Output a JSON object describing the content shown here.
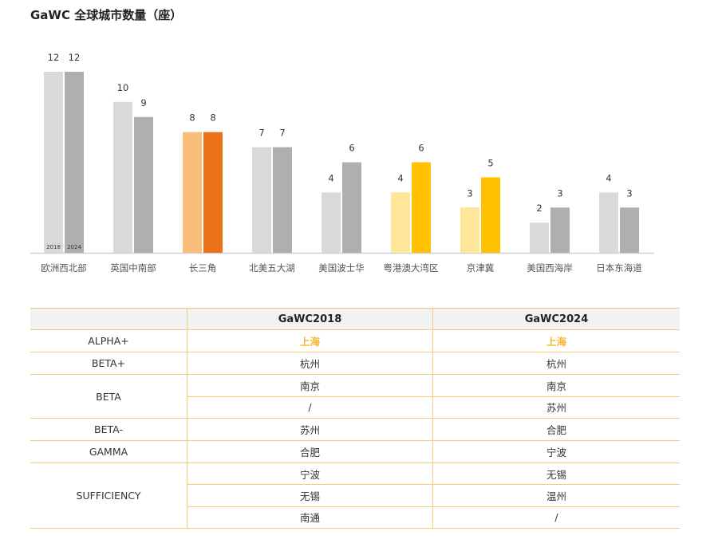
{
  "title": "GaWC 全球城市数量（座）",
  "chart_data": {
    "type": "bar",
    "title": "GaWC 全球城市数量（座）",
    "categories": [
      "欧洲西北部",
      "英国中南部",
      "长三角",
      "北美五大湖",
      "美国波士华",
      "粤港澳大湾区",
      "京津冀",
      "美国西海岸",
      "日本东海道"
    ],
    "series": [
      {
        "name": "2018",
        "values": [
          12,
          10,
          8,
          7,
          4,
          4,
          3,
          2,
          4
        ]
      },
      {
        "name": "2024",
        "values": [
          12,
          9,
          8,
          7,
          6,
          6,
          5,
          3,
          3
        ]
      }
    ],
    "colors": {
      "default": [
        "#d9d9d9",
        "#afafaf"
      ],
      "长三角": [
        "#f8bd7a",
        "#ec7218"
      ],
      "粤港澳大湾区": [
        "#ffe699",
        "#ffc000"
      ],
      "京津冀": [
        "#ffe699",
        "#ffc000"
      ]
    },
    "ylim": [
      0,
      12
    ],
    "xlabel": "",
    "ylabel": "",
    "grid": false
  },
  "table": {
    "headers": [
      "",
      "GaWC2018",
      "GaWC2024"
    ],
    "groups": [
      {
        "level": "ALPHA+",
        "rows": [
          [
            "上海",
            "上海"
          ]
        ],
        "highlight": true
      },
      {
        "level": "BETA+",
        "rows": [
          [
            "杭州",
            "杭州"
          ]
        ]
      },
      {
        "level": "BETA",
        "rows": [
          [
            "南京",
            "南京"
          ],
          [
            "/",
            "苏州"
          ]
        ]
      },
      {
        "level": "BETA-",
        "rows": [
          [
            "苏州",
            "合肥"
          ]
        ]
      },
      {
        "level": "GAMMA",
        "rows": [
          [
            "合肥",
            "宁波"
          ]
        ]
      },
      {
        "level": "SUFFICIENCY",
        "rows": [
          [
            "宁波",
            "无锡"
          ],
          [
            "无锡",
            "温州"
          ],
          [
            "南通",
            "/"
          ]
        ]
      }
    ]
  }
}
